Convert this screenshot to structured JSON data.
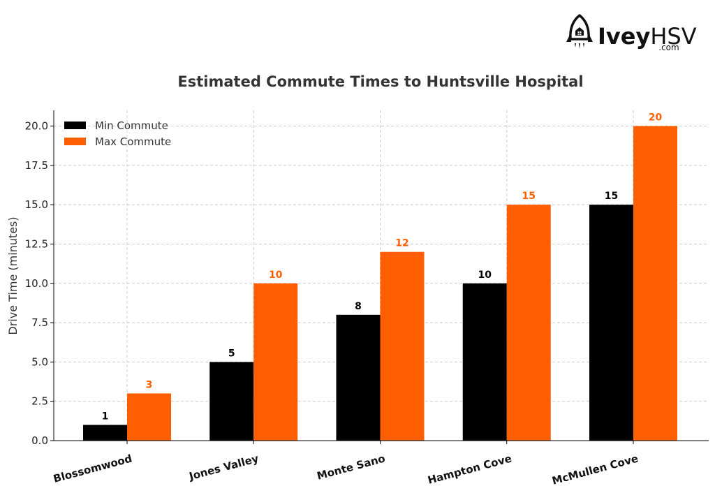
{
  "logo": {
    "word_bold": "Ivey",
    "word_light": "HSV",
    "sub": ".com"
  },
  "chart_data": {
    "type": "bar",
    "title": "Estimated Commute Times to Huntsville Hospital",
    "xlabel": "",
    "ylabel": "Drive Time (minutes)",
    "categories": [
      "Blossomwood",
      "Jones Valley",
      "Monte Sano",
      "Hampton Cove",
      "McMullen Cove"
    ],
    "series": [
      {
        "name": "Min Commute",
        "values": [
          1,
          5,
          8,
          10,
          15
        ],
        "color": "#000000"
      },
      {
        "name": "Max Commute",
        "values": [
          3,
          10,
          12,
          15,
          20
        ],
        "color": "#ff5f00"
      }
    ],
    "ylim": [
      0,
      21
    ],
    "yticks": [
      "0.0",
      "2.5",
      "5.0",
      "7.5",
      "10.0",
      "12.5",
      "15.0",
      "17.5",
      "20.0"
    ],
    "grid": true,
    "legend_position": "top-left"
  }
}
